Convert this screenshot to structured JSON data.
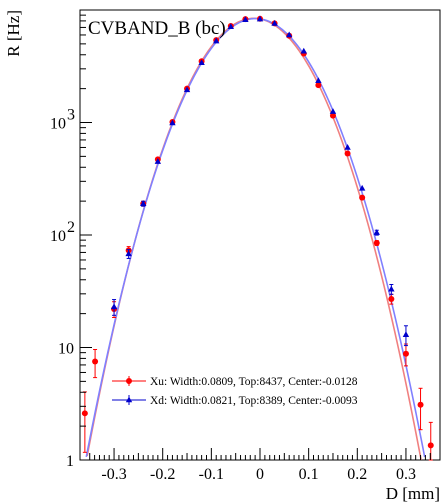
{
  "chart_data": {
    "type": "scatter",
    "title": "CVBAND_B  (bc)",
    "xlabel": "D [mm]",
    "ylabel": "R [Hz]",
    "xlim": [
      -0.37,
      0.37
    ],
    "ylim": [
      1,
      10000
    ],
    "yscale": "log",
    "grid": false,
    "legend_position": "bottom-center",
    "x_ticks": [
      {
        "value": -0.3,
        "label": "-0.3"
      },
      {
        "value": -0.2,
        "label": "-0.2"
      },
      {
        "value": -0.1,
        "label": "-0.1"
      },
      {
        "value": 0,
        "label": "0"
      },
      {
        "value": 0.1,
        "label": "0.1"
      },
      {
        "value": 0.2,
        "label": "0.2"
      },
      {
        "value": 0.3,
        "label": "0.3"
      }
    ],
    "y_ticks": [
      {
        "value": 1,
        "label": "1"
      },
      {
        "value": 10,
        "label": "10"
      },
      {
        "value": 100,
        "label": "10",
        "exp": "2"
      },
      {
        "value": 1000,
        "label": "10",
        "exp": "3"
      }
    ],
    "series": [
      {
        "name": "Xu: Width:0.0809, Top:8437, Center:-0.0128",
        "color": "#ff0000",
        "curve_color": "#f08080",
        "marker": "circle",
        "width": 0.0809,
        "top": 8437,
        "center": -0.0128,
        "x": [
          -0.36,
          -0.339,
          -0.3,
          -0.27,
          -0.24,
          -0.21,
          -0.18,
          -0.15,
          -0.12,
          -0.09,
          -0.06,
          -0.03,
          0.0,
          0.03,
          0.06,
          0.09,
          0.12,
          0.15,
          0.18,
          0.21,
          0.24,
          0.27,
          0.3,
          0.33,
          0.351
        ],
        "y": [
          2.6,
          7.5,
          22,
          73,
          190,
          470,
          1010,
          2000,
          3500,
          5400,
          7200,
          8300,
          8350,
          7600,
          5900,
          4100,
          2150,
          1150,
          530,
          215,
          85,
          27,
          8.8,
          3.1,
          1.35
        ],
        "yerr_rel": [
          0.55,
          0.28,
          0.16,
          0.08,
          0.05,
          0.03,
          0.02,
          0.01,
          0.01,
          0.01,
          0.01,
          0.01,
          0.01,
          0.01,
          0.01,
          0.01,
          0.01,
          0.01,
          0.02,
          0.03,
          0.05,
          0.1,
          0.22,
          0.4,
          0.6
        ]
      },
      {
        "name": "Xd: Width:0.0821, Top:8389, Center:-0.0093",
        "color": "#0000cc",
        "curve_color": "#8080ff",
        "marker": "triangle",
        "width": 0.0821,
        "top": 8389,
        "center": -0.0093,
        "x": [
          -0.3,
          -0.27,
          -0.24,
          -0.21,
          -0.18,
          -0.15,
          -0.12,
          -0.09,
          -0.06,
          -0.03,
          0.0,
          0.03,
          0.06,
          0.09,
          0.12,
          0.15,
          0.18,
          0.21,
          0.24,
          0.27,
          0.3
        ],
        "y": [
          23,
          68,
          190,
          450,
          990,
          1950,
          3400,
          5300,
          7100,
          8200,
          8300,
          7600,
          6000,
          4300,
          2350,
          1250,
          600,
          260,
          105,
          33,
          13
        ],
        "yerr_rel": [
          0.16,
          0.09,
          0.05,
          0.03,
          0.02,
          0.01,
          0.01,
          0.01,
          0.01,
          0.01,
          0.01,
          0.01,
          0.01,
          0.01,
          0.01,
          0.01,
          0.02,
          0.03,
          0.05,
          0.1,
          0.2
        ]
      }
    ]
  }
}
